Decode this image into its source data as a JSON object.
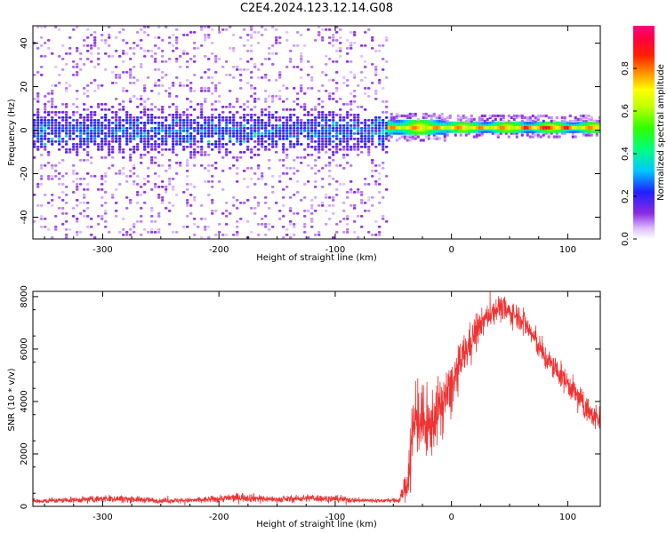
{
  "title": "C2E4.2024.123.12.14.G08",
  "chart_data": [
    {
      "type": "heatmap",
      "xlabel": "Height of straight line (km)",
      "ylabel": "Frequency (Hz)",
      "xlim": [
        -360,
        128
      ],
      "ylim": [
        -50,
        48
      ],
      "xticks": [
        -300,
        -200,
        -100,
        0,
        100
      ],
      "yticks": [
        -40,
        -20,
        0,
        20,
        40
      ],
      "colorbar": {
        "label": "Normalized spectral amplitude",
        "range": [
          0.0,
          1.0
        ],
        "ticks": [
          0.0,
          0.2,
          0.4,
          0.6,
          0.8
        ],
        "colormap": "hsv-like: white, violet, blue, cyan, green, yellow, orange, red, magenta"
      },
      "regions": [
        {
          "x": [
            -360,
            -55
          ],
          "description": "noisy spectrum spread across full band, concentrated within about -10 to 10 Hz",
          "typical_amplitude": 0.15
        },
        {
          "x": [
            -55,
            128
          ],
          "description": "narrow coherent band near 0 to 2 Hz",
          "typical_amplitude": 0.7,
          "center_freq": 1.5
        }
      ]
    },
    {
      "type": "line",
      "xlabel": "Height of straight line (km)",
      "ylabel": "SNR (10 * v/v)",
      "xlim": [
        -360,
        128
      ],
      "ylim": [
        0,
        8200
      ],
      "xticks": [
        -300,
        -200,
        -100,
        0,
        100
      ],
      "yticks": [
        0,
        2000,
        4000,
        6000,
        8000
      ],
      "series": [
        {
          "color": "#ee3333",
          "x": [
            -360,
            -320,
            -290,
            -250,
            -220,
            -180,
            -150,
            -120,
            -100,
            -80,
            -60,
            -45,
            -38,
            -35,
            -30,
            -20,
            -10,
            0,
            10,
            20,
            30,
            40,
            50,
            60,
            70,
            80,
            90,
            100,
            110,
            120,
            128
          ],
          "y": [
            200,
            250,
            300,
            220,
            230,
            350,
            260,
            320,
            280,
            230,
            220,
            230,
            900,
            2200,
            3500,
            2900,
            3800,
            4500,
            5700,
            6600,
            7200,
            7600,
            7400,
            7200,
            6500,
            5700,
            5200,
            4700,
            4100,
            3500,
            3300
          ],
          "noise": [
            60,
            70,
            90,
            60,
            60,
            110,
            70,
            90,
            80,
            60,
            50,
            60,
            400,
            1100,
            900,
            800,
            700,
            600,
            500,
            400,
            300,
            300,
            300,
            300,
            300,
            300,
            300,
            300,
            300,
            300,
            300
          ]
        }
      ]
    }
  ]
}
